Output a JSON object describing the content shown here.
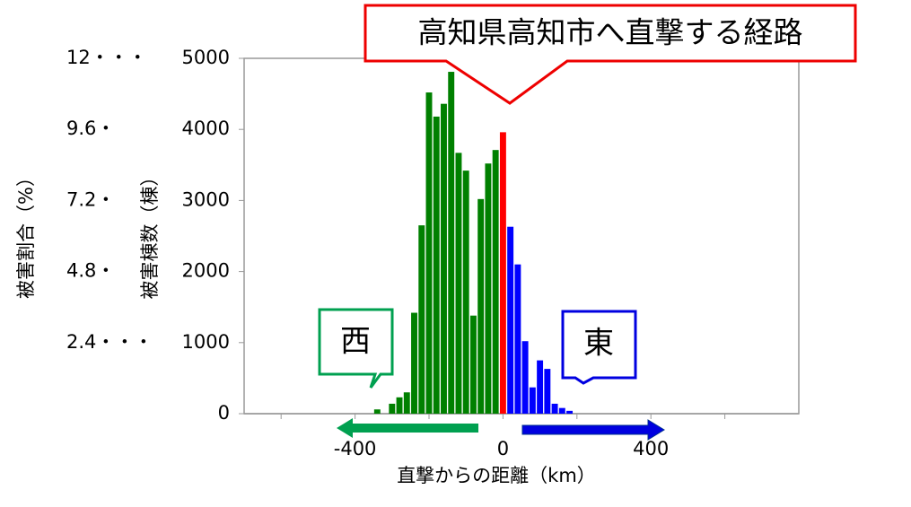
{
  "chart_data": {
    "type": "bar",
    "title": "高知県高知市へ直撃する経路",
    "xlabel": "直撃からの距離（km）",
    "ylabel": "被害棟数（棟）",
    "y2label": "被害割合（%）",
    "annotations": [
      "西",
      "東"
    ],
    "x": [
      -340,
      -320,
      -300,
      -280,
      -260,
      -240,
      -220,
      -200,
      -180,
      -160,
      -140,
      -120,
      -100,
      -80,
      -60,
      -40,
      -20,
      0,
      20,
      40,
      60,
      80,
      100,
      120,
      140,
      160,
      180
    ],
    "values": [
      60,
      0,
      140,
      230,
      300,
      1420,
      2650,
      4520,
      4180,
      4360,
      4810,
      3670,
      3420,
      1380,
      3020,
      3520,
      3710,
      3960,
      2630,
      2100,
      1020,
      370,
      750,
      630,
      140,
      80,
      40
    ],
    "colors": [
      "#008000",
      "#008000",
      "#008000",
      "#008000",
      "#008000",
      "#008000",
      "#008000",
      "#008000",
      "#008000",
      "#008000",
      "#008000",
      "#008000",
      "#008000",
      "#008000",
      "#008000",
      "#008000",
      "#008000",
      "#ff0000",
      "#0000ff",
      "#0000ff",
      "#0000ff",
      "#0000ff",
      "#0000ff",
      "#0000ff",
      "#0000ff",
      "#0000ff",
      "#0000ff"
    ],
    "xlim": [
      -700,
      800
    ],
    "xticks": [
      -400,
      0,
      400
    ],
    "xminor_ticks": [
      -600,
      -200,
      200,
      600
    ],
    "ylim": [
      0,
      5000
    ],
    "yticks": [
      0,
      1000,
      2000,
      3000,
      4000,
      5000
    ],
    "y2lim": [
      0,
      12
    ],
    "y2ticks": [
      {
        "value": 2.4,
        "label": "2.4・・・"
      },
      {
        "value": 4.8,
        "label": "4.8・"
      },
      {
        "value": 7.2,
        "label": "7.2・"
      },
      {
        "value": 9.6,
        "label": "9.6・"
      },
      {
        "value": 12,
        "label": "12・・・"
      }
    ]
  }
}
